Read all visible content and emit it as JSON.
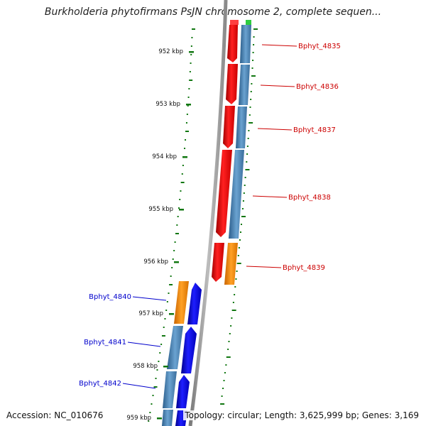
{
  "title": "Burkholderia phytofirmans PsJN chromosome 2, complete sequen...",
  "ticks": [
    {
      "label": "952 kbp"
    },
    {
      "label": "953 kbp"
    },
    {
      "label": "954 kbp"
    },
    {
      "label": "955 kbp"
    },
    {
      "label": "956 kbp"
    },
    {
      "label": "957 kbp"
    },
    {
      "label": "958 kbp"
    },
    {
      "label": "959 kbp"
    }
  ],
  "genes_right": [
    {
      "name": "Bphyt_4835"
    },
    {
      "name": "Bphyt_4836"
    },
    {
      "name": "Bphyt_4837"
    },
    {
      "name": "Bphyt_4838"
    },
    {
      "name": "Bphyt_4839"
    }
  ],
  "genes_left": [
    {
      "name": "Bphyt_4840"
    },
    {
      "name": "Bphyt_4841"
    },
    {
      "name": "Bphyt_4842"
    }
  ],
  "colors": {
    "forward_strand": "#ff0000",
    "reverse_strand": "#0000ff",
    "cds_feature": "#4a85b8",
    "orange_feature": "#ff8c00",
    "right_label": "#cc0000",
    "left_label": "#0000cc",
    "tick": "#117711",
    "backbone": "#888888"
  },
  "footer": {
    "accession": "Accession: NC_010676",
    "stats": "Topology: circular; Length: 3,625,999 bp; Genes: 3,169"
  }
}
